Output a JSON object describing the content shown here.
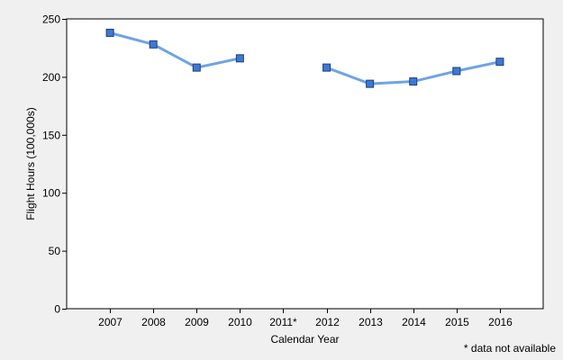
{
  "colors": {
    "background": "#f0f0f0",
    "plot_background": "#ffffff",
    "axis": "#000000",
    "line": "#6fa3e6",
    "marker_fill": "#3f78d4",
    "marker_stroke": "#1f3f7a"
  },
  "chart_data": {
    "type": "line",
    "xlabel": "Calendar Year",
    "ylabel": "Flight Hours (100,000s)",
    "categories": [
      "2007",
      "2008",
      "2009",
      "2010",
      "2011*",
      "2012",
      "2013",
      "2014",
      "2015",
      "2016"
    ],
    "series": [
      {
        "values": [
          238,
          228,
          208,
          216,
          null,
          208,
          194,
          196,
          205,
          213
        ]
      }
    ],
    "ylim": [
      0,
      250
    ],
    "yticks": [
      0,
      50,
      100,
      150,
      200,
      250
    ],
    "grid": false,
    "legend": "none",
    "footnote": "* data not available"
  }
}
